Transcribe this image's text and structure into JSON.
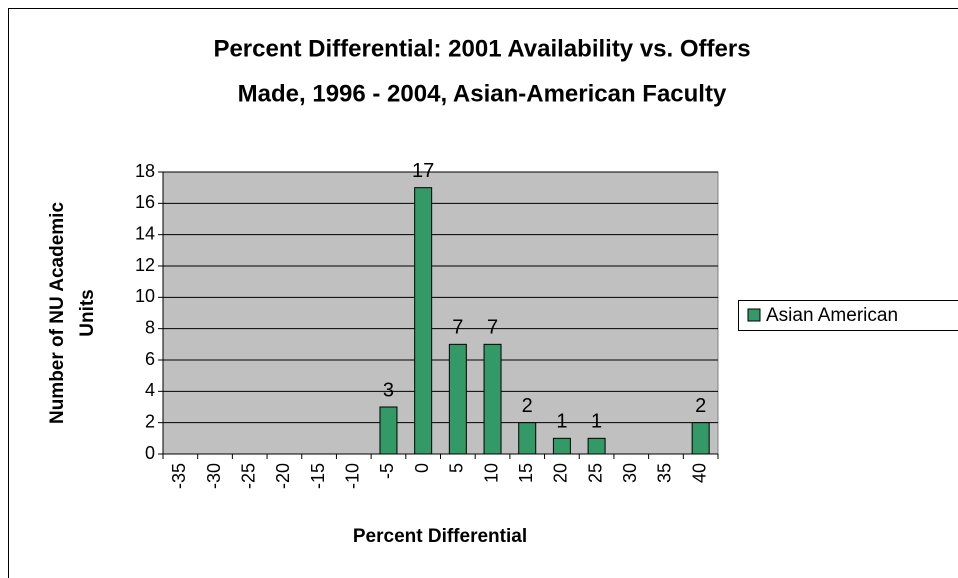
{
  "chart_data": {
    "type": "bar",
    "title": [
      "Percent Differential: 2001 Availability vs. Offers",
      "Made, 1996 - 2004, Asian-American Faculty"
    ],
    "ylabel": [
      "Number of NU Academic",
      "Units"
    ],
    "xlabel": "Percent Differential",
    "categories": [
      -35,
      -30,
      -25,
      -20,
      -15,
      -10,
      -5,
      0,
      5,
      10,
      15,
      20,
      25,
      30,
      35,
      40
    ],
    "series": [
      {
        "name": "Asian American",
        "color": "#339966",
        "values": [
          null,
          null,
          null,
          null,
          null,
          null,
          3,
          17,
          7,
          7,
          2,
          1,
          1,
          null,
          null,
          2
        ]
      }
    ],
    "ylim": [
      0,
      18
    ],
    "yticks": [
      0,
      2,
      4,
      6,
      8,
      10,
      12,
      14,
      16,
      18
    ],
    "grid": true,
    "legend": "right"
  }
}
